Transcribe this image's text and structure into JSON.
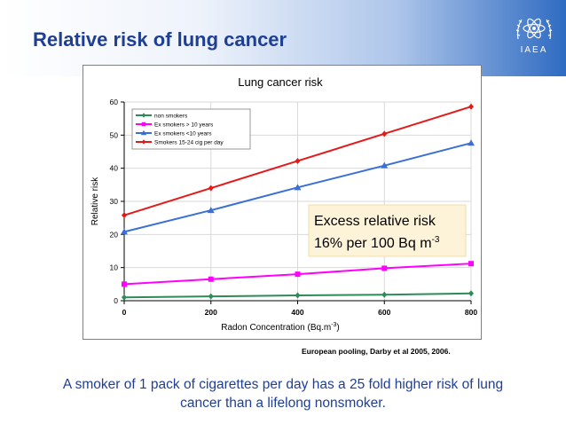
{
  "slide": {
    "title": "Relative risk of lung cancer",
    "logo_text": "IAEA",
    "source": "European pooling, Darby et al 2005, 2006.",
    "note": "A smoker of 1 pack of cigarettes per day has a 25 fold higher risk of lung cancer than a lifelong nonsmoker."
  },
  "chart_data": {
    "type": "line",
    "title": "Lung cancer risk",
    "xlabel": "Radon Concentration (Bq.m",
    "xlabel_sup": "-3",
    "xlabel_close": ")",
    "ylabel": "Relative risk",
    "x": [
      0,
      200,
      400,
      600,
      800
    ],
    "xlim": [
      0,
      800
    ],
    "ylim": [
      0,
      60
    ],
    "x_ticks": [
      0,
      200,
      400,
      600,
      800
    ],
    "y_ticks": [
      0,
      10,
      20,
      30,
      40,
      50,
      60
    ],
    "grid": true,
    "legend_position": "top-left",
    "series": [
      {
        "name": "non smokers",
        "color": "#2e8b57",
        "marker": "diamond",
        "values": [
          1,
          1.3,
          1.6,
          1.8,
          2.2
        ]
      },
      {
        "name": "Ex smokers  > 10 years",
        "color": "#ff00ff",
        "marker": "square",
        "values": [
          5,
          6.5,
          8,
          9.8,
          11.2
        ]
      },
      {
        "name": "Ex smokers <10 years",
        "color": "#3a6fd8",
        "marker": "triangle",
        "values": [
          20.8,
          27.3,
          34.2,
          40.8,
          47.6
        ]
      },
      {
        "name": "Smokers 15-24 cig per day",
        "color": "#e41a1a",
        "marker": "diamond",
        "values": [
          25.8,
          34,
          42.2,
          50.4,
          58.6
        ]
      }
    ],
    "annotation": {
      "line1": "Excess relative risk",
      "line2": "16% per 100 Bq m",
      "line2_sup": "-3"
    }
  }
}
